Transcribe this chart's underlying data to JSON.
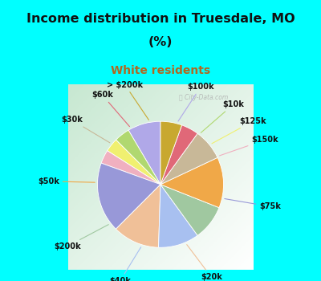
{
  "title_line1": "Income distribution in Truesdale, MO",
  "title_line2": "(%)",
  "subtitle": "White residents",
  "title_color": "#111111",
  "subtitle_color": "#b06820",
  "bg_cyan": "#00ffff",
  "watermark": "City-Data.com",
  "labels": [
    "$100k",
    "$10k",
    "$125k",
    "$150k",
    "$75k",
    "$20k",
    "$40k",
    "$200k",
    "$50k",
    "$30k",
    "$60k",
    "> $200k"
  ],
  "values": [
    8.5,
    4.0,
    3.5,
    3.5,
    18.0,
    12.0,
    10.5,
    9.0,
    13.0,
    8.0,
    4.5,
    5.5
  ],
  "colors": [
    "#b0a8e8",
    "#b0d870",
    "#f0f070",
    "#f0b0c0",
    "#9898d8",
    "#f0c098",
    "#a8c0f0",
    "#a0c8a0",
    "#f0a848",
    "#c8b898",
    "#e06878",
    "#c8a830"
  ],
  "startangle": 90,
  "figsize": [
    4.0,
    3.5
  ],
  "dpi": 100,
  "title_fontsize": 11.5,
  "subtitle_fontsize": 10,
  "label_fontsize": 7.0
}
